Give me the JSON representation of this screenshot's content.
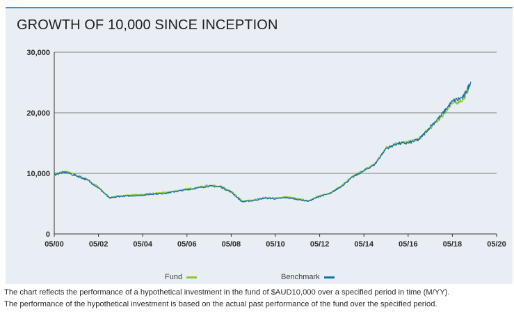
{
  "title": "GROWTH OF 10,000 SINCE INCEPTION",
  "colors": {
    "fund": "#8cc63f",
    "benchmark": "#1a6fa8",
    "panel": "#e8eef3",
    "accent": "#4a8fc9",
    "grid": "#5a5a5a"
  },
  "chart_data": {
    "type": "line",
    "title": "GROWTH OF 10,000 SINCE INCEPTION",
    "xlabel": "",
    "ylabel": "",
    "xlim": [
      "05/00",
      "05/20"
    ],
    "ylim": [
      0,
      30000
    ],
    "x_ticks": [
      "05/00",
      "05/02",
      "05/04",
      "05/06",
      "05/08",
      "05/10",
      "05/12",
      "05/14",
      "05/16",
      "05/18",
      "05/20"
    ],
    "y_ticks": [
      0,
      10000,
      20000,
      30000
    ],
    "y_tick_labels": [
      "0",
      "10,000",
      "20,000",
      "30,000"
    ],
    "grid": "horizontal",
    "legend_position": "bottom",
    "series": [
      {
        "name": "Fund",
        "color": "#8cc63f",
        "x": [
          "05/00",
          "11/00",
          "05/01",
          "11/01",
          "05/02",
          "11/02",
          "05/03",
          "11/03",
          "05/04",
          "11/04",
          "05/05",
          "11/05",
          "05/06",
          "11/06",
          "05/07",
          "11/07",
          "05/08",
          "11/08",
          "05/09",
          "11/09",
          "05/10",
          "11/10",
          "05/11",
          "11/11",
          "05/12",
          "11/12",
          "05/13",
          "11/13",
          "05/14",
          "11/14",
          "05/15",
          "11/15",
          "05/16",
          "11/16",
          "05/17",
          "11/17",
          "05/18",
          "11/18",
          "03/19"
        ],
        "values": [
          9900,
          10300,
          9700,
          9000,
          7700,
          6000,
          6300,
          6400,
          6500,
          6700,
          6800,
          7100,
          7400,
          7700,
          8000,
          7900,
          7000,
          5400,
          5600,
          6000,
          5900,
          6100,
          5800,
          5500,
          6300,
          6800,
          8000,
          9500,
          10500,
          11600,
          14200,
          15000,
          15100,
          15700,
          17500,
          19300,
          21500,
          22200,
          24800
        ]
      },
      {
        "name": "Benchmark",
        "color": "#1a6fa8",
        "x": [
          "05/00",
          "11/00",
          "05/01",
          "11/01",
          "05/02",
          "11/02",
          "05/03",
          "11/03",
          "05/04",
          "11/04",
          "05/05",
          "11/05",
          "05/06",
          "11/06",
          "05/07",
          "11/07",
          "05/08",
          "11/08",
          "05/09",
          "11/09",
          "05/10",
          "11/10",
          "05/11",
          "11/11",
          "05/12",
          "11/12",
          "05/13",
          "11/13",
          "05/14",
          "11/14",
          "05/15",
          "11/15",
          "05/16",
          "11/16",
          "05/17",
          "11/17",
          "05/18",
          "11/18",
          "03/19"
        ],
        "values": [
          9800,
          10200,
          9600,
          8900,
          7600,
          5900,
          6200,
          6300,
          6400,
          6600,
          6700,
          7000,
          7300,
          7600,
          7900,
          7800,
          6900,
          5300,
          5500,
          5900,
          5800,
          6000,
          5700,
          5400,
          6200,
          6700,
          7900,
          9400,
          10400,
          11500,
          14100,
          14900,
          15000,
          15600,
          17700,
          19600,
          21900,
          22600,
          25100
        ]
      }
    ]
  },
  "legend": {
    "fund_label": "Fund",
    "benchmark_label": "Benchmark"
  },
  "footnote": {
    "line1": "The chart reflects the performance of a hypothetical investment in the fund of $AUD10,000 over a specified period in time (M/YY).",
    "line2": "The performance of the hypothetical investment is based on the actual past performance of the fund over the specified period."
  }
}
